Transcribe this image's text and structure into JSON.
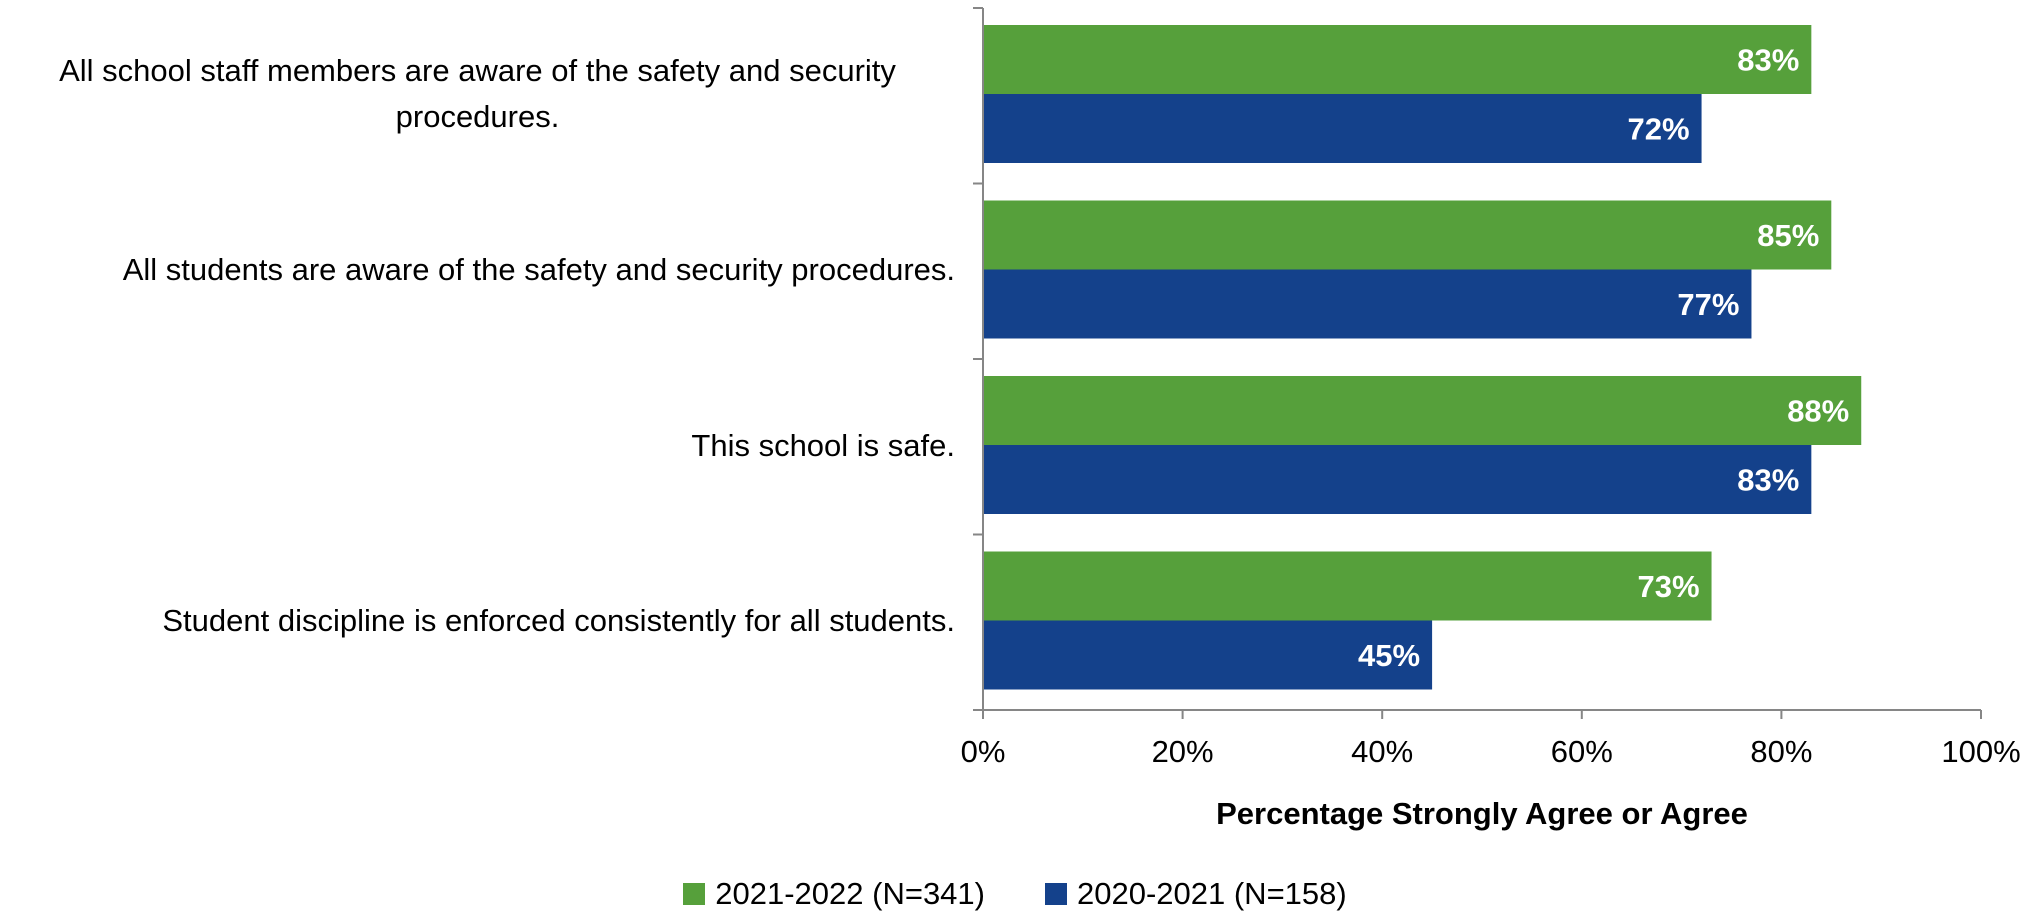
{
  "chart_data": {
    "type": "bar",
    "orientation": "horizontal",
    "categories": [
      "All school staff members are aware of the safety and security procedures.",
      "All students are aware of the safety and security procedures.",
      "This school is safe.",
      "Student discipline is enforced consistently for all students."
    ],
    "series": [
      {
        "name": "2021-2022 (N=341)",
        "color": "#56a03b",
        "values": [
          83,
          85,
          88,
          73
        ]
      },
      {
        "name": "2020-2021 (N=158)",
        "color": "#14418b",
        "values": [
          72,
          77,
          83,
          45
        ]
      }
    ],
    "data_labels": [
      [
        "83%",
        "85%",
        "88%",
        "73%"
      ],
      [
        "72%",
        "77%",
        "83%",
        "45%"
      ]
    ],
    "xlabel": "Percentage Strongly Agree or Agree",
    "xlim": [
      0,
      100
    ],
    "xticks": [
      "0%",
      "20%",
      "40%",
      "60%",
      "80%",
      "100%"
    ],
    "legend_position": "bottom",
    "grid": false
  }
}
